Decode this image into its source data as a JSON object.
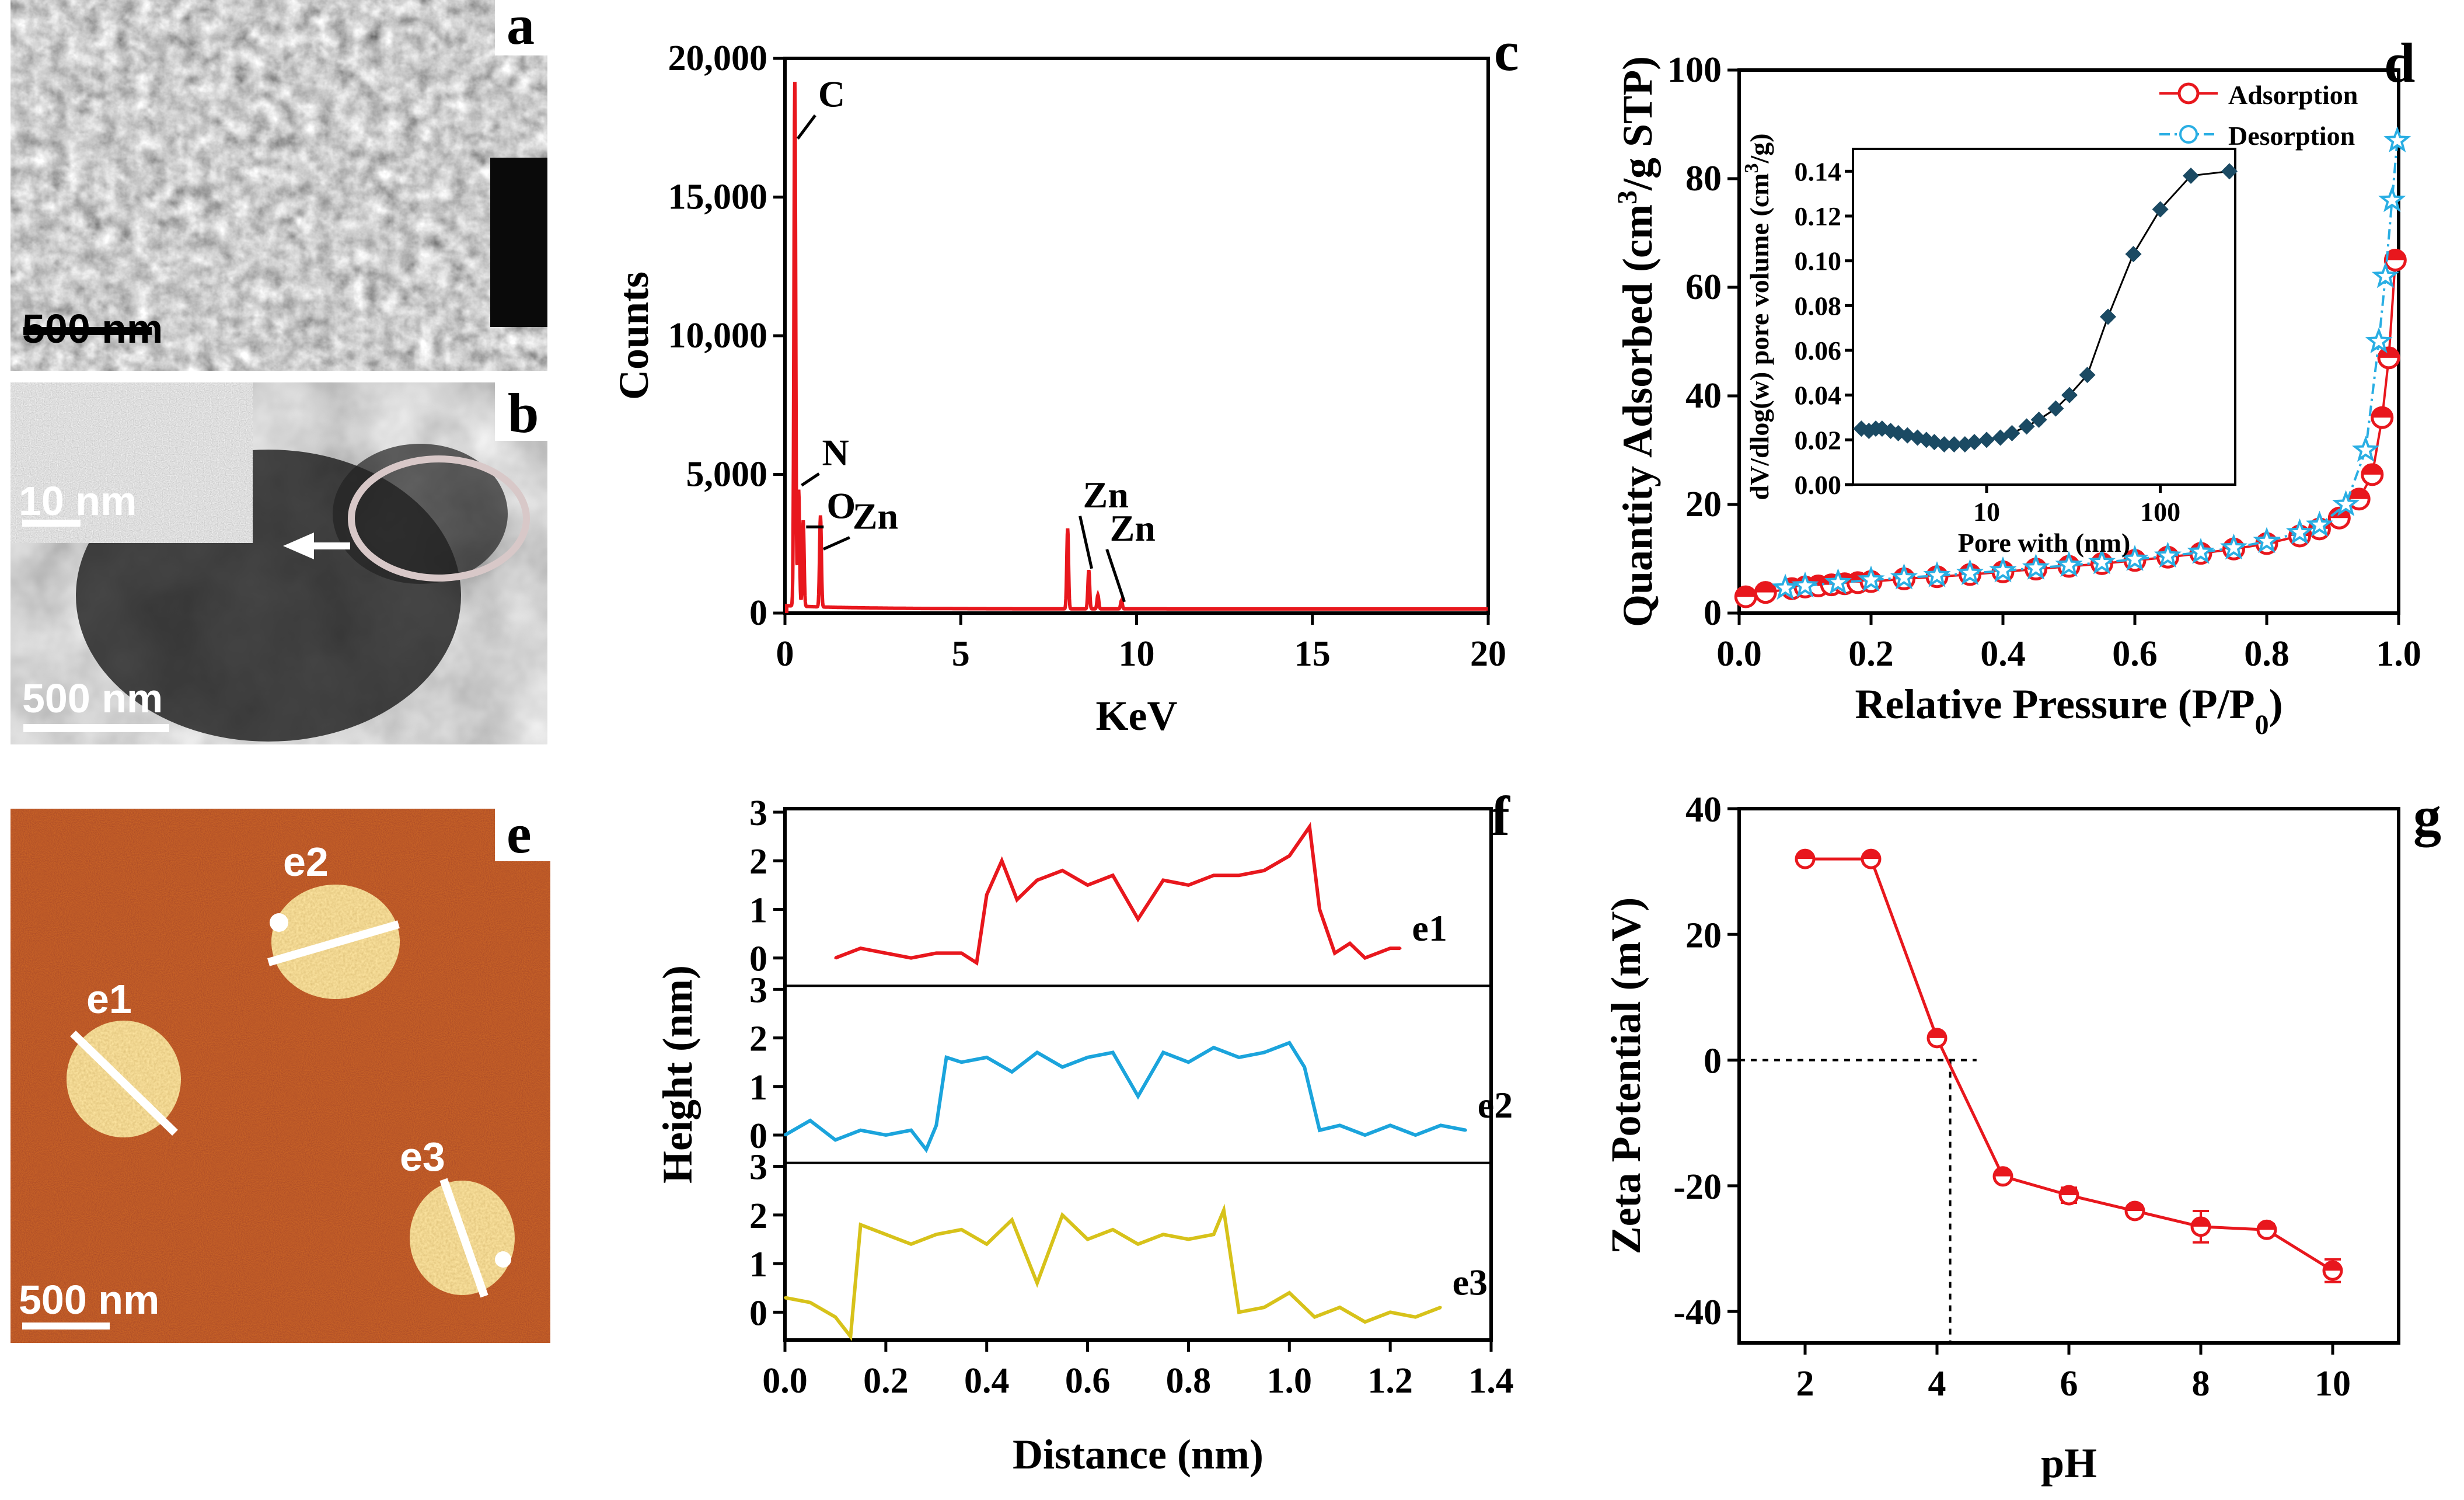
{
  "panels": {
    "a": {
      "label": "a",
      "scalebar": "500 nm"
    },
    "b": {
      "label": "b",
      "scalebar": "500 nm",
      "inset_scalebar": "10 nm"
    },
    "e": {
      "label": "e",
      "scalebar": "500 nm",
      "markers": [
        "e1",
        "e2",
        "e3"
      ]
    }
  },
  "chart_data": [
    {
      "panel": "c",
      "type": "line",
      "title": "",
      "xlabel": "KeV",
      "ylabel": "Counts",
      "xlim": [
        0,
        20
      ],
      "ylim": [
        0,
        20000
      ],
      "xticks": [
        0,
        5,
        10,
        15,
        20
      ],
      "yticks": [
        0,
        5000,
        10000,
        15000,
        20000
      ],
      "ytick_labels": [
        "0",
        "5,000",
        "10,000",
        "15,000",
        "20,000"
      ],
      "color": "#e8171d",
      "peaks": [
        {
          "x": 0.28,
          "y": 18900
        },
        {
          "x": 0.39,
          "y": 4200
        },
        {
          "x": 0.52,
          "y": 3100
        },
        {
          "x": 1.01,
          "y": 3300
        },
        {
          "x": 8.04,
          "y": 2900
        },
        {
          "x": 8.64,
          "y": 1400
        },
        {
          "x": 8.9,
          "y": 500
        },
        {
          "x": 9.57,
          "y": 300
        }
      ],
      "annotations": [
        {
          "text": "C",
          "x": 0.28,
          "y": 17000
        },
        {
          "text": "N",
          "x": 0.39,
          "y": 4500
        },
        {
          "text": "O",
          "x": 0.52,
          "y": 3000
        },
        {
          "text": "Zn",
          "x": 1.01,
          "y": 2200
        },
        {
          "text": "Zn",
          "x": 8.64,
          "y": 1500
        },
        {
          "text": "Zn",
          "x": 9.57,
          "y": 300
        }
      ]
    },
    {
      "panel": "d",
      "type": "line",
      "xlabel": "Relative Pressure (P/P0)",
      "ylabel": "Quantity Adsorbed (cm3/g STP)",
      "xlim": [
        0,
        1
      ],
      "ylim": [
        0,
        100
      ],
      "xticks": [
        0.0,
        0.2,
        0.4,
        0.6,
        0.8,
        1.0
      ],
      "xtick_labels": [
        "0.0",
        "0.2",
        "0.4",
        "0.6",
        "0.8",
        "1.0"
      ],
      "yticks": [
        0,
        20,
        40,
        60,
        80,
        100
      ],
      "legend": "top-right",
      "series": [
        {
          "name": "Adsorption",
          "color": "#e8171d",
          "x": [
            0.01,
            0.04,
            0.08,
            0.1,
            0.12,
            0.14,
            0.16,
            0.18,
            0.2,
            0.25,
            0.3,
            0.35,
            0.4,
            0.45,
            0.5,
            0.55,
            0.6,
            0.65,
            0.7,
            0.75,
            0.8,
            0.85,
            0.88,
            0.91,
            0.94,
            0.96,
            0.975,
            0.985,
            0.995
          ],
          "y": [
            3,
            3.8,
            4.5,
            4.8,
            5,
            5.2,
            5.4,
            5.6,
            5.8,
            6.3,
            6.7,
            7.1,
            7.6,
            8.1,
            8.6,
            9.1,
            9.7,
            10.3,
            11,
            11.8,
            12.8,
            14.2,
            15.5,
            17.5,
            21,
            25.5,
            36,
            47,
            65
          ]
        },
        {
          "name": "Desorption",
          "color": "#29aee3",
          "x": [
            0.998,
            0.99,
            0.98,
            0.97,
            0.95,
            0.92,
            0.88,
            0.85,
            0.8,
            0.75,
            0.7,
            0.65,
            0.6,
            0.55,
            0.5,
            0.45,
            0.4,
            0.35,
            0.3,
            0.25,
            0.2,
            0.15,
            0.1,
            0.07
          ],
          "y": [
            87,
            76,
            62,
            50,
            30,
            20,
            16.2,
            14.8,
            13.2,
            12,
            11.2,
            10.5,
            9.9,
            9.3,
            8.8,
            8.3,
            7.8,
            7.3,
            6.9,
            6.5,
            6.1,
            5.6,
            5.0,
            4.6
          ]
        }
      ],
      "inset": {
        "type": "line",
        "xlabel": "Pore with (nm)",
        "ylabel": "dV/dlog(w) pore volume (cm3/g)",
        "xscale": "log",
        "xlim": [
          1.7,
          270
        ],
        "ylim": [
          0,
          0.15
        ],
        "xticks": [
          10,
          100
        ],
        "yticks": [
          0.0,
          0.02,
          0.04,
          0.06,
          0.08,
          0.1,
          0.12,
          0.14
        ],
        "ytick_labels": [
          "0.00",
          "0.02",
          "0.04",
          "0.06",
          "0.08",
          "0.10",
          "0.12",
          "0.14"
        ],
        "color": "#1b4a63",
        "x": [
          1.9,
          2.1,
          2.3,
          2.5,
          2.8,
          3.1,
          3.5,
          4.0,
          4.5,
          5.0,
          5.7,
          6.5,
          7.5,
          8.5,
          10,
          12,
          14,
          17,
          20,
          25,
          30,
          38,
          50,
          70,
          100,
          150,
          250
        ],
        "y": [
          0.025,
          0.024,
          0.025,
          0.025,
          0.024,
          0.023,
          0.022,
          0.021,
          0.02,
          0.019,
          0.018,
          0.018,
          0.018,
          0.019,
          0.02,
          0.021,
          0.023,
          0.026,
          0.029,
          0.034,
          0.04,
          0.049,
          0.075,
          0.103,
          0.123,
          0.138,
          0.14
        ]
      }
    },
    {
      "panel": "f",
      "type": "line",
      "xlabel": "Distance (nm)",
      "ylabel": "Height (nm)",
      "xlim": [
        0,
        1.4
      ],
      "xticks": [
        0.0,
        0.2,
        0.4,
        0.6,
        0.8,
        1.0,
        1.2,
        1.4
      ],
      "xtick_labels": [
        "0.0",
        "0.2",
        "0.4",
        "0.6",
        "0.8",
        "1.0",
        "1.2",
        "1.4"
      ],
      "yticks": [
        0,
        1,
        2,
        3
      ],
      "ylim": [
        -0.5,
        3
      ],
      "series": [
        {
          "name": "e1",
          "color": "#e8171d",
          "x": [
            0.1,
            0.15,
            0.2,
            0.25,
            0.3,
            0.35,
            0.38,
            0.4,
            0.43,
            0.46,
            0.5,
            0.55,
            0.6,
            0.65,
            0.7,
            0.75,
            0.8,
            0.85,
            0.9,
            0.95,
            1.0,
            1.04,
            1.06,
            1.09,
            1.12,
            1.15,
            1.2,
            1.22
          ],
          "y": [
            0,
            0.2,
            0.1,
            0,
            0.1,
            0.1,
            -0.1,
            1.3,
            2.0,
            1.2,
            1.6,
            1.8,
            1.5,
            1.7,
            0.8,
            1.6,
            1.5,
            1.7,
            1.7,
            1.8,
            2.1,
            2.7,
            1.0,
            0.1,
            0.3,
            0.0,
            0.2,
            0.2
          ]
        },
        {
          "name": "e2",
          "color": "#1ba4dc",
          "x": [
            0.0,
            0.05,
            0.1,
            0.15,
            0.2,
            0.25,
            0.28,
            0.3,
            0.32,
            0.35,
            0.4,
            0.45,
            0.5,
            0.55,
            0.6,
            0.65,
            0.7,
            0.75,
            0.8,
            0.85,
            0.9,
            0.95,
            1.0,
            1.03,
            1.06,
            1.1,
            1.15,
            1.2,
            1.25,
            1.3,
            1.35
          ],
          "y": [
            0,
            0.3,
            -0.1,
            0.1,
            0,
            0.1,
            -0.3,
            0.2,
            1.6,
            1.5,
            1.6,
            1.3,
            1.7,
            1.4,
            1.6,
            1.7,
            0.8,
            1.7,
            1.5,
            1.8,
            1.6,
            1.7,
            1.9,
            1.4,
            0.1,
            0.2,
            0,
            0.2,
            0,
            0.2,
            0.1
          ]
        },
        {
          "name": "e3",
          "color": "#d7c21a",
          "x": [
            0.0,
            0.05,
            0.1,
            0.13,
            0.15,
            0.2,
            0.25,
            0.3,
            0.35,
            0.4,
            0.45,
            0.5,
            0.55,
            0.6,
            0.65,
            0.7,
            0.75,
            0.8,
            0.85,
            0.87,
            0.9,
            0.95,
            1.0,
            1.05,
            1.1,
            1.15,
            1.2,
            1.25,
            1.3
          ],
          "y": [
            0.3,
            0.2,
            -0.1,
            -0.5,
            1.8,
            1.6,
            1.4,
            1.6,
            1.7,
            1.4,
            1.9,
            0.6,
            2.0,
            1.5,
            1.7,
            1.4,
            1.6,
            1.5,
            1.6,
            2.1,
            0.0,
            0.1,
            0.4,
            -0.1,
            0.1,
            -0.2,
            0.0,
            -0.1,
            0.1
          ]
        }
      ]
    },
    {
      "panel": "g",
      "type": "line",
      "xlabel": "pH",
      "ylabel": "Zeta Potential (mV)",
      "xlim": [
        1,
        11
      ],
      "ylim": [
        -45,
        40
      ],
      "xticks": [
        2,
        4,
        6,
        8,
        10
      ],
      "yticks": [
        -40,
        -20,
        0,
        20,
        40
      ],
      "color": "#e8171d",
      "x": [
        2,
        3,
        4,
        5,
        6,
        7,
        8,
        9,
        10
      ],
      "y": [
        32,
        32,
        3.5,
        -18.5,
        -21.5,
        -24,
        -26.5,
        -27,
        -33.5
      ],
      "errors": [
        0.8,
        0.8,
        0.8,
        0.8,
        1.2,
        0.9,
        2.5,
        0.9,
        1.8
      ],
      "isoelectric_point": 4.2
    }
  ]
}
